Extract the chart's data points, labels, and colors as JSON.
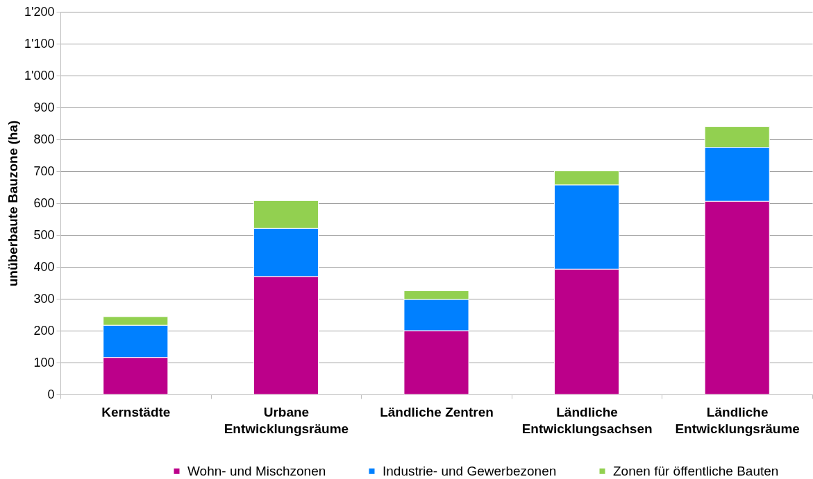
{
  "chart_data": {
    "type": "bar",
    "stacked": true,
    "ylabel": "unüberbaute Bauzone (ha)",
    "categories": [
      "Kernstädte",
      "Urbane Entwicklungsräume",
      "Ländliche Zentren",
      "Ländliche Entwicklungsachsen",
      "Ländliche Entwicklungsräume"
    ],
    "series": [
      {
        "name": "Wohn- und Mischzonen",
        "color": "#bc008a",
        "values": [
          116,
          370,
          200,
          393,
          606
        ]
      },
      {
        "name": "Industrie- und Gewerbezonen",
        "color": "#0080ff",
        "values": [
          101,
          151,
          98,
          264,
          169
        ]
      },
      {
        "name": "Zonen für öffentliche Bauten",
        "color": "#92d050",
        "values": [
          27,
          87,
          27,
          44,
          65
        ]
      }
    ],
    "ylim": [
      0,
      1200
    ],
    "yticks": [
      0,
      100,
      200,
      300,
      400,
      500,
      600,
      700,
      800,
      900,
      {
        "value": 1000,
        "label": "1'000"
      },
      {
        "value": 1100,
        "label": "1'100"
      },
      {
        "value": 1200,
        "label": "1'200"
      }
    ],
    "grid": "y",
    "legend": "bottom"
  }
}
